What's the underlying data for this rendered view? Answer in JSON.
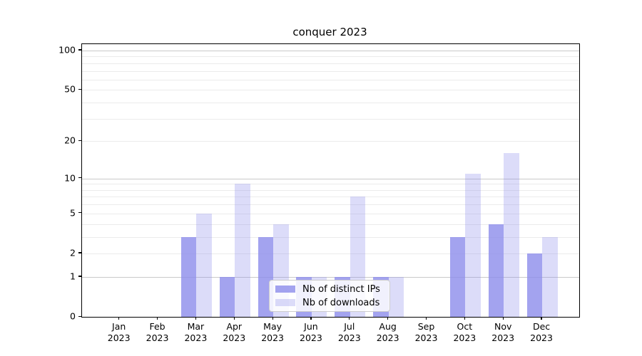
{
  "title": "conquer 2023",
  "chart_data": {
    "type": "bar",
    "title": "conquer 2023",
    "xlabel": "",
    "ylabel": "",
    "scale": "log10(1+x)",
    "grid": true,
    "legend_position": "lower center",
    "categories": [
      "Jan",
      "Feb",
      "Mar",
      "Apr",
      "May",
      "Jun",
      "Jul",
      "Aug",
      "Sep",
      "Oct",
      "Nov",
      "Dec"
    ],
    "category_year": "2023",
    "yticks": [
      0,
      1,
      2,
      5,
      10,
      20,
      50,
      100
    ],
    "ylim": [
      0,
      112
    ],
    "series": [
      {
        "name": "Nb of distinct IPs",
        "color": "rgba(140,140,235,0.8)",
        "values": [
          0,
          0,
          3,
          1,
          3,
          1,
          1,
          1,
          0,
          3,
          4,
          2
        ]
      },
      {
        "name": "Nb of downloads",
        "color": "rgba(140,140,235,0.3)",
        "values": [
          0,
          0,
          5,
          9,
          4,
          1,
          7,
          1,
          0,
          11,
          16,
          3
        ]
      }
    ]
  },
  "colors": {
    "bar_dark": "rgba(140,140,235,0.8)",
    "bar_light": "rgba(140,140,235,0.3)",
    "grid_minor": "#ebebeb",
    "grid_major": "#c9c9c9",
    "spine": "#000000",
    "legend_border": "#cccccc"
  }
}
